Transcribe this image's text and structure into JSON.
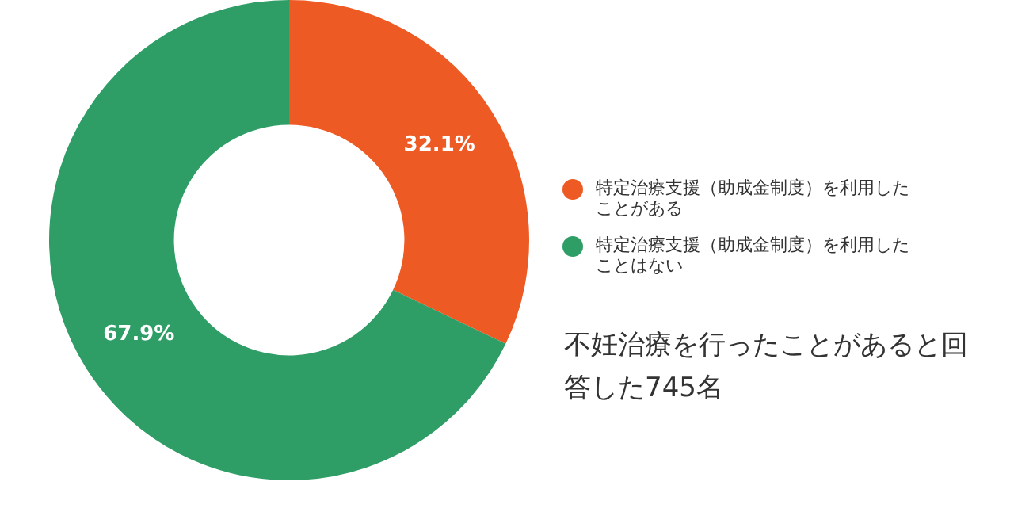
{
  "chart_data": {
    "type": "donut",
    "categories": [
      "特定治療支援（助成金制度）を利用したことがある",
      "特定治療支援（助成金制度）を利用したことはない"
    ],
    "values": [
      32.1,
      67.9
    ],
    "colors": [
      "#ee5a24",
      "#2e9e66"
    ],
    "value_labels": [
      "32.1%",
      "67.9%"
    ],
    "legend": "right",
    "annotations": [
      "不妊治療を行ったことがあると回答した745名"
    ]
  }
}
